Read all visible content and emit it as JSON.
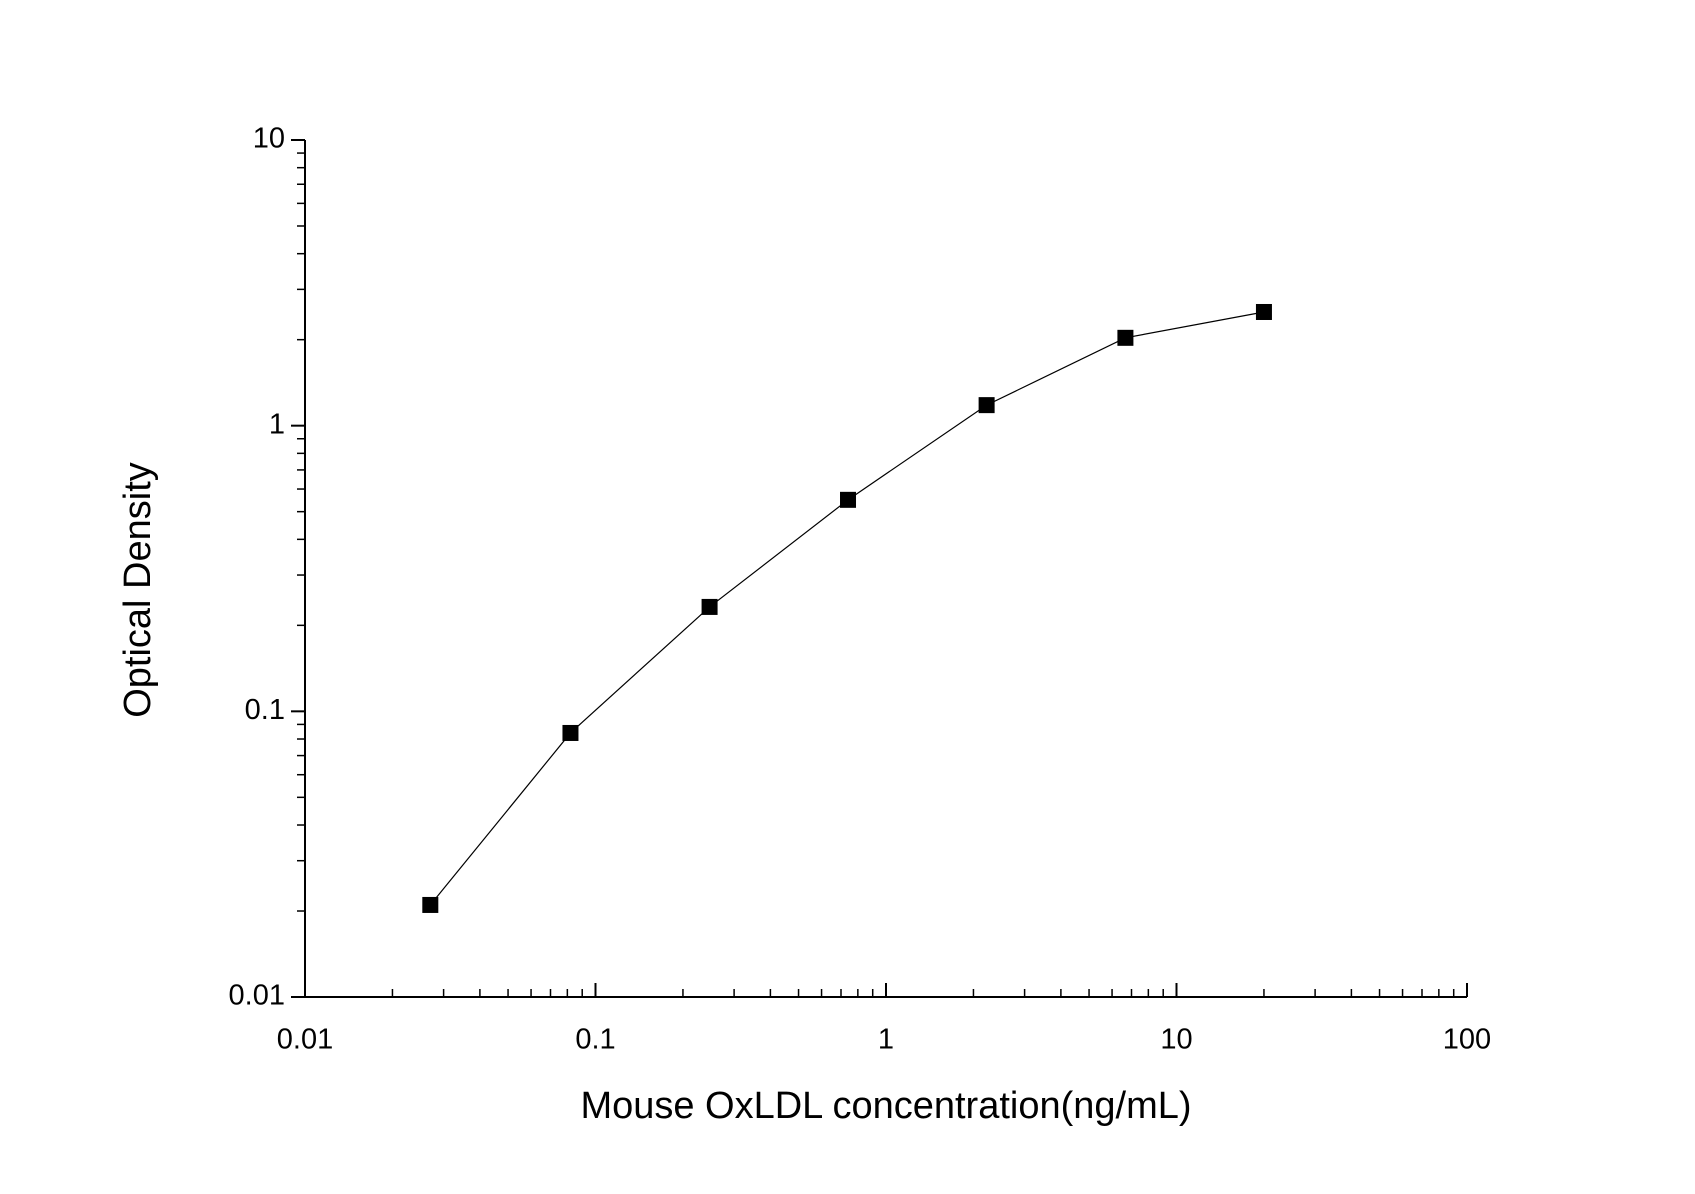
{
  "chart_data": {
    "type": "line",
    "x_label": "Mouse OxLDL  concentration(ng/mL)",
    "y_label": "Optical  Density",
    "x": [
      0.027,
      0.082,
      0.247,
      0.74,
      2.22,
      6.67,
      20
    ],
    "series": [
      {
        "color": "#000000",
        "values": [
          0.021,
          0.084,
          0.232,
          0.55,
          1.18,
          2.03,
          2.5
        ]
      }
    ],
    "xlim": [
      0.01,
      100
    ],
    "ylim": [
      0.01,
      10
    ],
    "xticks": [
      0.01,
      0.1,
      1,
      10,
      100
    ],
    "yticks": [
      0.01,
      0.1,
      1,
      10
    ],
    "x_scale": "log",
    "y_scale": "log",
    "grid": false
  }
}
